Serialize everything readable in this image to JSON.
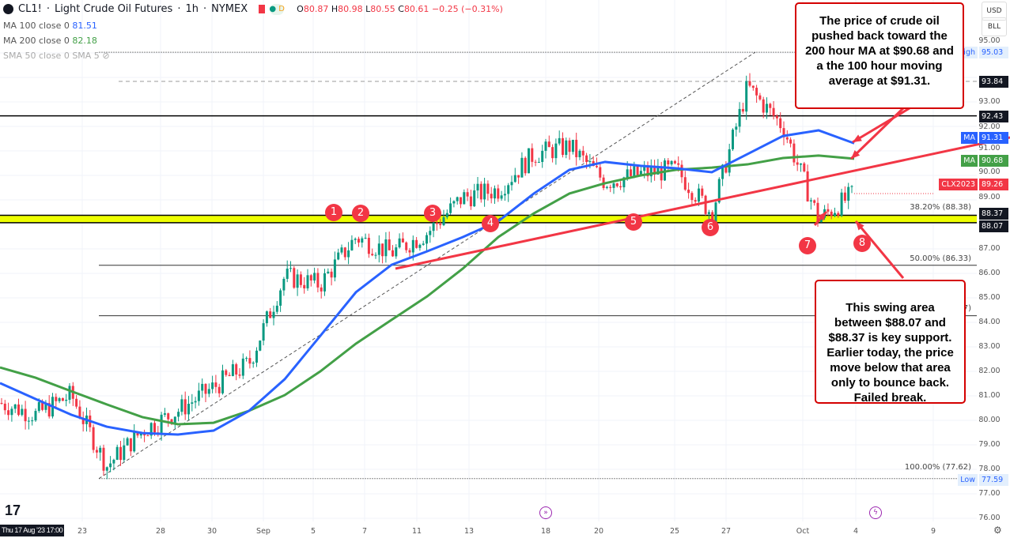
{
  "header": {
    "symbol": "CL1!",
    "title": "Light Crude Oil Futures",
    "interval": "1h",
    "exchange": "NYMEX",
    "badge": "D",
    "open_label": "O",
    "open": "80.87",
    "high_label": "H",
    "high": "80.98",
    "low_label": "L",
    "low": "80.55",
    "close_label": "C",
    "close": "80.61",
    "change": "−0.25 (−0.31%)"
  },
  "indicators": [
    {
      "label": "MA 100 close 0",
      "value": "81.51",
      "color": "#2962ff"
    },
    {
      "label": "MA 200 close 0",
      "value": "82.18",
      "color": "#43a047"
    },
    {
      "label": "SMA 50 close 0 SMA 5",
      "value": ""
    }
  ],
  "currency": {
    "currency": "USD",
    "unit": "BLL"
  },
  "price_axis": {
    "ticks": [
      "95.00",
      "93.00",
      "92.00",
      "91.00",
      "90.00",
      "89.00",
      "87.00",
      "86.00",
      "85.00",
      "84.00",
      "83.00",
      "82.00",
      "81.00",
      "80.00",
      "79.00",
      "78.00",
      "77.00",
      "76.00"
    ],
    "tags": {
      "high_label": "High",
      "high": "95.03",
      "level1": "93.84",
      "level2": "92.43",
      "ma100_label": "MA",
      "ma100": "91.31",
      "ma200_label": "MA",
      "ma200": "90.68",
      "contract": "CLX2023",
      "contract_price": "89.26",
      "support_top": "88.37",
      "support_bottom": "88.07",
      "low_label": "Low",
      "low": "77.59"
    }
  },
  "time_axis": {
    "cursor_label": "Thu 17 Aug '23  17:00",
    "ticks": [
      "23",
      "28",
      "30",
      "Sep",
      "5",
      "7",
      "11",
      "13",
      "18",
      "20",
      "25",
      "27",
      "Oct",
      "4",
      "9"
    ]
  },
  "fib": {
    "f382": "38.20% (88.38)",
    "f500": "50.00% (86.33)",
    "f618": "7)",
    "f100": "100.00% (77.62)"
  },
  "annotations": {
    "top": "The price of crude oil pushed back toward the 200 hour MA at $90.68 and a the 100 hour moving average at $91.31.",
    "bottom": "This swing area between $88.07 and $88.37 is key support. Earlier today, the price move below that area only to bounce back. Failed break.",
    "markers": [
      "1",
      "2",
      "3",
      "4",
      "5",
      "6",
      "7",
      "8"
    ]
  },
  "colors": {
    "ma100": "#2962ff",
    "ma200": "#43a047",
    "trendline": "#f23645",
    "support_band": "#eeff00",
    "up": "#089981",
    "down": "#f23645",
    "annotation": "#d40000"
  },
  "chart_data": {
    "type": "candlestick",
    "price_range": [
      75.6,
      96.0
    ],
    "close_samples": [
      80.71,
      80.23,
      81.03,
      78.13,
      79.58,
      80.39,
      81.35,
      82.32,
      85.87,
      85.55,
      87.48,
      86.84,
      87.65,
      89.1,
      89.42,
      90.87,
      91.19,
      89.74,
      90.06,
      90.23,
      88.45,
      93.61,
      92.0,
      88.2,
      89.26
    ],
    "ma100_samples": [
      81.52,
      80.87,
      80.23,
      79.74,
      79.48,
      79.42,
      79.58,
      80.39,
      81.68,
      83.45,
      85.23,
      86.35,
      86.9,
      87.48,
      88.13,
      89.26,
      90.23,
      90.55,
      90.39,
      90.29,
      90.13,
      90.87,
      91.61,
      91.84,
      91.31
    ],
    "ma200_samples": [
      82.16,
      81.74,
      81.19,
      80.65,
      80.13,
      79.84,
      79.9,
      80.39,
      81.03,
      82.0,
      83.13,
      84.1,
      85.06,
      86.19,
      87.48,
      88.45,
      89.26,
      89.68,
      90.0,
      90.23,
      90.32,
      90.45,
      90.71,
      90.81,
      90.68
    ],
    "horizontal_levels": [
      93.84,
      92.43,
      88.37,
      88.07
    ],
    "fib_levels": [
      95.03,
      88.38,
      86.33,
      84.27,
      77.62
    ]
  }
}
